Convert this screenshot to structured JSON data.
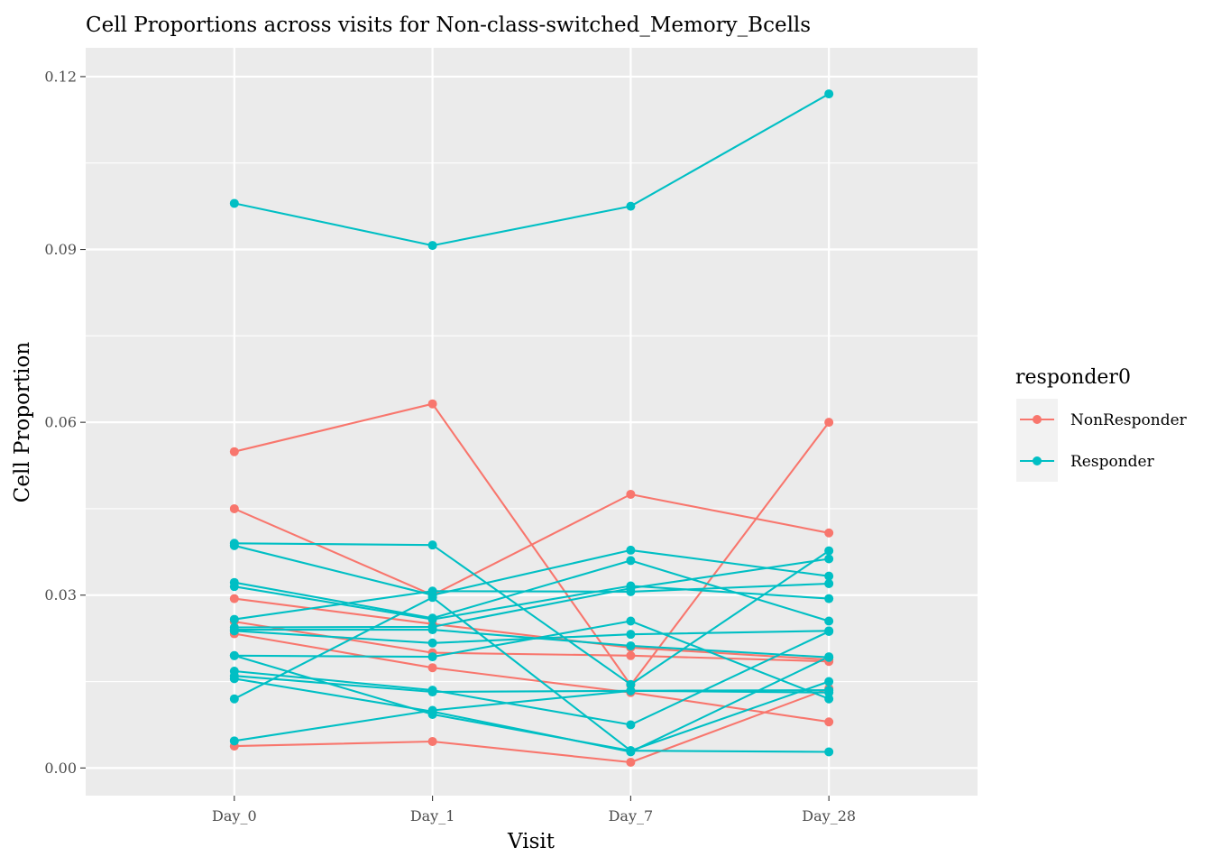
{
  "chart_data": {
    "type": "line",
    "title": "Cell Proportions across visits for Non-class-switched_Memory_Bcells",
    "xlabel": "Visit",
    "ylabel": "Cell Proportion",
    "categories": [
      "Day_0",
      "Day_1",
      "Day_7",
      "Day_28"
    ],
    "ylim": [
      -0.0048,
      0.125
    ],
    "yticks": [
      0.0,
      0.03,
      0.06,
      0.09,
      0.12
    ],
    "ytick_labels": [
      "0.00",
      "0.03",
      "0.06",
      "0.09",
      "0.12"
    ],
    "grid": true,
    "legend": {
      "title": "responder0",
      "placement": "right",
      "entries": [
        {
          "name": "NonResponder",
          "color": "#F8766D"
        },
        {
          "name": "Responder",
          "color": "#00BFC4"
        }
      ]
    },
    "series": [
      {
        "group": "NonResponder",
        "values": [
          0.0549,
          0.0632,
          0.0144,
          0.06
        ]
      },
      {
        "group": "NonResponder",
        "values": [
          0.045,
          0.03,
          0.0475,
          0.0408
        ]
      },
      {
        "group": "NonResponder",
        "values": [
          0.0294,
          0.025,
          0.0209,
          0.0188
        ]
      },
      {
        "group": "NonResponder",
        "values": [
          0.0254,
          0.02,
          0.0195,
          0.0185
        ]
      },
      {
        "group": "NonResponder",
        "values": [
          0.0233,
          0.0174,
          0.0131,
          0.008
        ]
      },
      {
        "group": "NonResponder",
        "values": [
          0.0038,
          0.0046,
          0.001,
          0.0138
        ]
      },
      {
        "group": "Responder",
        "values": [
          0.098,
          0.0907,
          0.0975,
          0.117
        ]
      },
      {
        "group": "Responder",
        "values": [
          0.039,
          0.0387,
          0.0145,
          0.0377
        ]
      },
      {
        "group": "Responder",
        "values": [
          0.0386,
          0.03,
          0.0378,
          0.0333
        ]
      },
      {
        "group": "Responder",
        "values": [
          0.0322,
          0.026,
          0.036,
          0.0255
        ]
      },
      {
        "group": "Responder",
        "values": [
          0.0315,
          0.0258,
          0.0316,
          0.0294
        ]
      },
      {
        "group": "Responder",
        "values": [
          0.0258,
          0.0307,
          0.0306,
          0.032
        ]
      },
      {
        "group": "Responder",
        "values": [
          0.0244,
          0.0245,
          0.0312,
          0.0363
        ]
      },
      {
        "group": "Responder",
        "values": [
          0.0238,
          0.0217,
          0.0232,
          0.0238
        ]
      },
      {
        "group": "Responder",
        "values": [
          0.0195,
          0.0193,
          0.0255,
          0.012
        ]
      },
      {
        "group": "Responder",
        "values": [
          0.0168,
          0.0135,
          0.0075,
          0.0237
        ]
      },
      {
        "group": "Responder",
        "values": [
          0.016,
          0.0132,
          0.0134,
          0.0131
        ]
      },
      {
        "group": "Responder",
        "values": [
          0.0155,
          0.0098,
          0.0028,
          0.0193
        ]
      },
      {
        "group": "Responder",
        "values": [
          0.012,
          0.0296,
          0.003,
          0.015
        ]
      },
      {
        "group": "Responder",
        "values": [
          0.0195,
          0.0093,
          0.003,
          0.0028
        ]
      },
      {
        "group": "Responder",
        "values": [
          0.0047,
          0.01,
          0.0134,
          0.0135
        ]
      },
      {
        "group": "Responder",
        "values": [
          0.024,
          0.024,
          0.0212,
          0.0192
        ]
      }
    ]
  }
}
